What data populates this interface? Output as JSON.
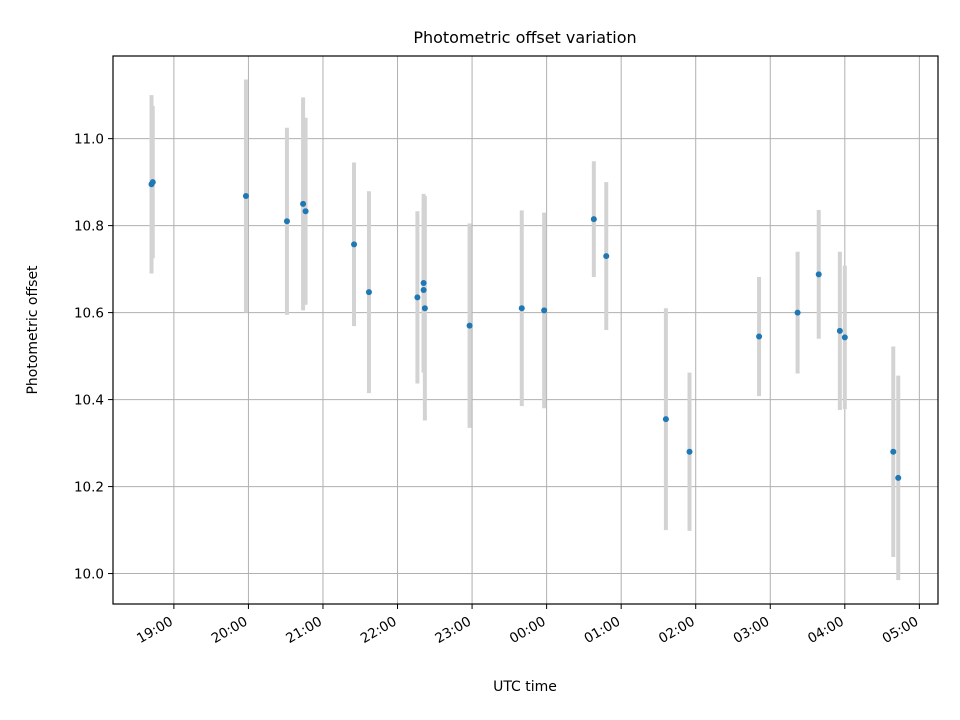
{
  "chart_data": {
    "type": "scatter",
    "title": "Photometric offset variation",
    "xlabel": "UTC time",
    "ylabel": "Photometric offset",
    "x_unit": "UTC hours (values past 24 wrap to next day)",
    "x_ticks": [
      "19:00",
      "20:00",
      "21:00",
      "22:00",
      "23:00",
      "00:00",
      "01:00",
      "02:00",
      "03:00",
      "04:00",
      "05:00"
    ],
    "y_ticks": [
      "10.0",
      "10.2",
      "10.4",
      "10.6",
      "10.8",
      "11.0"
    ],
    "xlim": [
      "18:11",
      "05:15"
    ],
    "ylim": [
      9.93,
      11.19
    ],
    "grid": true,
    "colors": {
      "point": "#1f77b4",
      "errorbar": "#d3d3d3",
      "grid": "#b0b0b0"
    },
    "series": [
      {
        "points": [
          {
            "x": "18:42",
            "y": 10.895,
            "err": 0.205
          },
          {
            "x": "18:43",
            "y": 10.9,
            "err": 0.175
          },
          {
            "x": "19:58",
            "y": 10.868,
            "err": 0.268
          },
          {
            "x": "20:31",
            "y": 10.81,
            "err": 0.215
          },
          {
            "x": "20:44",
            "y": 10.85,
            "err": 0.245
          },
          {
            "x": "20:46",
            "y": 10.833,
            "err": 0.215
          },
          {
            "x": "21:25",
            "y": 10.757,
            "err": 0.188
          },
          {
            "x": "21:37",
            "y": 10.647,
            "err": 0.232
          },
          {
            "x": "22:16",
            "y": 10.635,
            "err": 0.198
          },
          {
            "x": "22:21",
            "y": 10.668,
            "err": 0.205
          },
          {
            "x": "22:21",
            "y": 10.652,
            "err": 0.19
          },
          {
            "x": "22:22",
            "y": 10.61,
            "err": 0.258
          },
          {
            "x": "22:58",
            "y": 10.57,
            "err": 0.235
          },
          {
            "x": "23:40",
            "y": 10.61,
            "err": 0.225
          },
          {
            "x": "23:58",
            "y": 10.605,
            "err": 0.225
          },
          {
            "x": "00:38",
            "y": 10.815,
            "err": 0.133
          },
          {
            "x": "00:48",
            "y": 10.73,
            "err": 0.17
          },
          {
            "x": "01:36",
            "y": 10.355,
            "err": 0.255
          },
          {
            "x": "01:55",
            "y": 10.28,
            "err": 0.182
          },
          {
            "x": "02:51",
            "y": 10.545,
            "err": 0.137
          },
          {
            "x": "03:22",
            "y": 10.6,
            "err": 0.14
          },
          {
            "x": "03:39",
            "y": 10.688,
            "err": 0.148
          },
          {
            "x": "03:56",
            "y": 10.558,
            "err": 0.182
          },
          {
            "x": "04:00",
            "y": 10.543,
            "err": 0.165
          },
          {
            "x": "04:39",
            "y": 10.28,
            "err": 0.242
          },
          {
            "x": "04:43",
            "y": 10.22,
            "err": 0.235
          }
        ]
      }
    ]
  }
}
